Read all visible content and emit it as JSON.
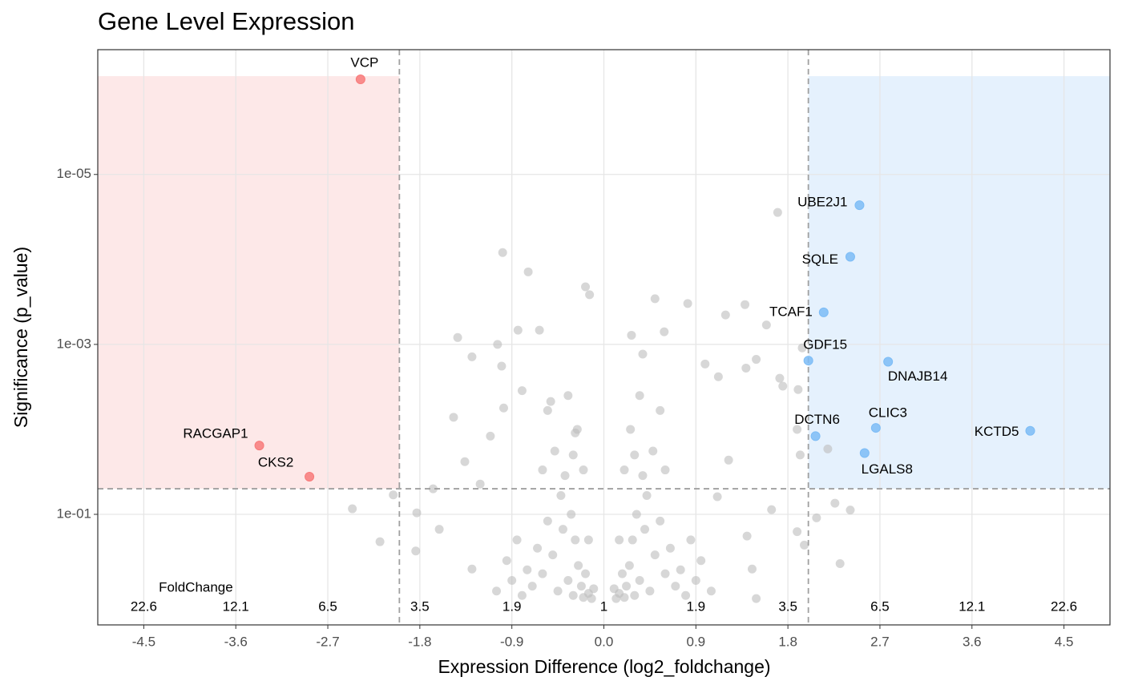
{
  "chart_data": {
    "type": "volcano",
    "title": "Gene Level Expression",
    "x_label": "Expression Difference (log2_foldchange)",
    "y_label": "Significance (p_value)",
    "xlim": [
      -4.95,
      4.95
    ],
    "ylim": [
      2.0,
      3.4e-07
    ],
    "y_log": true,
    "y_reversed": true,
    "grid": true,
    "xticks": [
      -4.5,
      -3.6,
      -2.7,
      -1.8,
      -0.9,
      {
        "value": 0,
        "label": "0.0"
      },
      0.9,
      1.8,
      2.7,
      3.6,
      4.5
    ],
    "yticks": [
      {
        "value": 1e-05,
        "label": "1e-05"
      },
      {
        "value": 0.001,
        "label": "1e-03"
      },
      {
        "value": 0.1,
        "label": "1e-01"
      }
    ],
    "fc_axis_title": "FoldChange",
    "fc_ticks": [
      {
        "value": -4.5,
        "label": "22.6"
      },
      {
        "value": -3.6,
        "label": "12.1"
      },
      {
        "value": -2.7,
        "label": "6.5"
      },
      {
        "value": -1.8,
        "label": "3.5"
      },
      {
        "value": -0.9,
        "label": "1.9"
      },
      {
        "value": 0,
        "label": "1"
      },
      {
        "value": 0.9,
        "label": "1.9"
      },
      {
        "value": 1.8,
        "label": "3.5"
      },
      {
        "value": 2.7,
        "label": "6.5"
      },
      {
        "value": 3.6,
        "label": "12.1"
      },
      {
        "value": 4.5,
        "label": "22.6"
      }
    ],
    "fc_threshold": 2,
    "p_threshold": 0.05,
    "down_region_color": "#fde8e8",
    "up_region_color": "#e5f1fd",
    "threshold_color": "#a0a0a0",
    "points": [
      {
        "label": "VCP",
        "x": -2.38,
        "p": 7.6e-07,
        "color": "#f87a7a"
      },
      {
        "label": "RACGAP1",
        "x": -3.37,
        "p": 0.0155,
        "color": "#f87a7a"
      },
      {
        "label": "CKS2",
        "x": -2.88,
        "p": 0.036,
        "color": "#f87a7a"
      },
      {
        "label": "UBE2J1",
        "x": 2.5,
        "p": 2.3e-05,
        "color": "#7cbcf6"
      },
      {
        "label": "SQLE",
        "x": 2.41,
        "p": 9.3e-05,
        "color": "#7cbcf6"
      },
      {
        "label": "TCAF1",
        "x": 2.15,
        "p": 0.00042,
        "color": "#7cbcf6"
      },
      {
        "label": "GDF15",
        "x": 2.0,
        "p": 0.00155,
        "color": "#7cbcf6"
      },
      {
        "label": "DNAJB14",
        "x": 2.78,
        "p": 0.0016,
        "color": "#7cbcf6"
      },
      {
        "label": "CLIC3",
        "x": 2.66,
        "p": 0.0096,
        "color": "#7cbcf6"
      },
      {
        "label": "DCTN6",
        "x": 2.07,
        "p": 0.012,
        "color": "#7cbcf6"
      },
      {
        "label": "LGALS8",
        "x": 2.55,
        "p": 0.019,
        "color": "#7cbcf6"
      },
      {
        "label": "KCTD5",
        "x": 4.17,
        "p": 0.0104,
        "color": "#7cbcf6"
      }
    ],
    "background_points": {
      "color": "#bdbdbd",
      "x": [
        -0.6,
        -0.5,
        -0.45,
        -0.4,
        -0.35,
        -0.3,
        -0.28,
        -0.25,
        -0.22,
        -0.2,
        -0.18,
        -0.15,
        -0.12,
        -0.1,
        -0.32,
        -0.42,
        -0.55,
        -0.65,
        -0.7,
        -0.75,
        -0.8,
        -0.85,
        -0.38,
        -0.3,
        -0.48,
        -0.26,
        -0.6,
        -0.9,
        -0.95,
        -1.05,
        -0.35,
        -0.55,
        -0.2,
        -0.15,
        0.6,
        0.5,
        0.45,
        0.4,
        0.35,
        0.3,
        0.28,
        0.25,
        0.22,
        0.2,
        0.18,
        0.15,
        0.12,
        0.1,
        0.32,
        0.42,
        0.55,
        0.65,
        0.7,
        0.75,
        0.8,
        0.85,
        0.38,
        0.3,
        0.48,
        0.26,
        0.6,
        0.9,
        0.95,
        1.05,
        0.35,
        0.55,
        0.2,
        0.15,
        1.7,
        -0.99,
        -0.74,
        -0.18,
        -0.14,
        0.5,
        0.82,
        1.38,
        1.19,
        1.59,
        -1.43,
        -0.84,
        -0.63,
        -1.04,
        -1.29,
        -1.0,
        0.27,
        0.59,
        0.38,
        0.99,
        1.12,
        1.39,
        1.72,
        1.49,
        1.94,
        1.9,
        1.75,
        1.89,
        1.92,
        2.19,
        2.41,
        2.26,
        2.08,
        1.89,
        1.96,
        2.31,
        1.49,
        1.45,
        1.4,
        1.64,
        1.11,
        1.22,
        -2.46,
        -2.19,
        -2.06,
        -1.84,
        -1.83,
        -1.67,
        -1.61,
        -1.47,
        -1.36,
        -1.29,
        -1.21,
        -1.11,
        -0.98,
        -0.8,
        -0.52,
        -0.28
      ],
      "values": [
        0.5,
        0.3,
        0.8,
        0.15,
        0.6,
        0.9,
        0.2,
        0.4,
        0.7,
        0.95,
        0.5,
        0.85,
        0.98,
        0.75,
        0.1,
        0.06,
        0.12,
        0.25,
        0.7,
        0.45,
        0.9,
        0.2,
        0.035,
        0.02,
        0.018,
        0.01,
        0.03,
        0.6,
        0.35,
        0.8,
        0.004,
        0.006,
        0.03,
        0.2,
        0.5,
        0.3,
        0.8,
        0.15,
        0.6,
        0.9,
        0.2,
        0.4,
        0.7,
        0.95,
        0.5,
        0.85,
        0.98,
        0.75,
        0.1,
        0.06,
        0.12,
        0.25,
        0.7,
        0.45,
        0.9,
        0.2,
        0.035,
        0.02,
        0.018,
        0.01,
        0.03,
        0.6,
        0.35,
        0.8,
        0.004,
        0.006,
        0.03,
        0.2,
        2.8e-05,
        8.3e-05,
        0.00014,
        0.00021,
        0.00026,
        0.00029,
        0.00033,
        0.00034,
        0.00045,
        0.00059,
        0.00083,
        0.00068,
        0.00068,
        0.001,
        0.0014,
        0.0018,
        0.00078,
        0.00071,
        0.0013,
        0.0017,
        0.0024,
        0.0019,
        0.0025,
        0.0015,
        0.0011,
        0.0034,
        0.0031,
        0.01,
        0.02,
        0.017,
        0.089,
        0.074,
        0.11,
        0.16,
        0.23,
        0.38,
        0.98,
        0.44,
        0.18,
        0.088,
        0.062,
        0.023,
        0.086,
        0.21,
        0.059,
        0.27,
        0.096,
        0.05,
        0.15,
        0.0072,
        0.024,
        0.44,
        0.044,
        0.012,
        0.0056,
        0.0035,
        0.0047,
        0.011
      ]
    }
  }
}
